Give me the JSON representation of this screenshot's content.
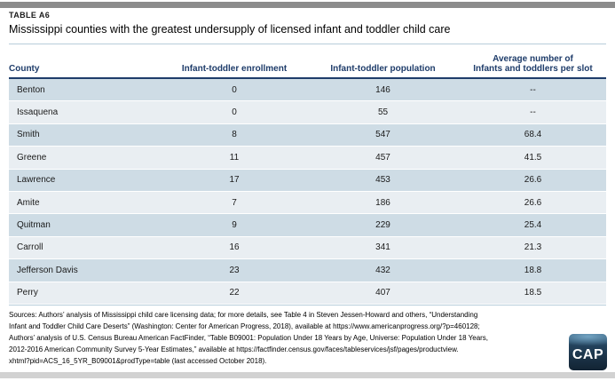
{
  "header": {
    "table_label": "TABLE A6",
    "title": "Mississippi counties with the greatest undersupply of licensed infant and toddler child care"
  },
  "table": {
    "columns": [
      {
        "label": "County"
      },
      {
        "label": "Infant-toddler enrollment"
      },
      {
        "label": "Infant-toddler population"
      },
      {
        "lines": [
          "Average number of",
          "Infants and toddlers per slot"
        ]
      }
    ],
    "rows": [
      {
        "county": "Benton",
        "enrollment": "0",
        "population": "146",
        "avg_per_slot": "--"
      },
      {
        "county": "Issaquena",
        "enrollment": "0",
        "population": "55",
        "avg_per_slot": "--"
      },
      {
        "county": "Smith",
        "enrollment": "8",
        "population": "547",
        "avg_per_slot": "68.4"
      },
      {
        "county": "Greene",
        "enrollment": "11",
        "population": "457",
        "avg_per_slot": "41.5"
      },
      {
        "county": "Lawrence",
        "enrollment": "17",
        "population": "453",
        "avg_per_slot": "26.6"
      },
      {
        "county": "Amite",
        "enrollment": "7",
        "population": "186",
        "avg_per_slot": "26.6"
      },
      {
        "county": "Quitman",
        "enrollment": "9",
        "population": "229",
        "avg_per_slot": "25.4"
      },
      {
        "county": "Carroll",
        "enrollment": "16",
        "population": "341",
        "avg_per_slot": "21.3"
      },
      {
        "county": "Jefferson Davis",
        "enrollment": "23",
        "population": "432",
        "avg_per_slot": "18.8"
      },
      {
        "county": "Perry",
        "enrollment": "22",
        "population": "407",
        "avg_per_slot": "18.5"
      }
    ]
  },
  "footer": {
    "source_lines": [
      "Sources: Authors’ analysis of Mississippi child care licensing data; for more details, see Table 4 in Steven Jessen-Howard and others, “Understanding",
      "Infant and Toddler Child Care Deserts” (Washington: Center for American Progress, 2018), available at https://www.americanprogress.org/?p=460128;",
      "Authors’ analysis of U.S. Census Bureau American FactFinder, “Table B09001: Population Under 18 Years by Age, Universe: Population Under 18 Years,",
      "2012-2016 American Community Survey 5-Year Estimates,” available at https://factfinder.census.gov/faces/tableservices/jsf/pages/productview.",
      "xhtml?pid=ACS_16_5YR_B09001&prodType=table (last accessed October 2018)."
    ],
    "logo_text": "CAP"
  },
  "colors": {
    "accent_navy": "#1e3c6a",
    "row_shaded": "#cedce5",
    "row_light": "#e9eef2",
    "top_bar": "#8c8c8c",
    "bottom_bar": "#d2d2d2",
    "thin_rule": "#b7cdda",
    "logo_background": "#1a3145"
  }
}
